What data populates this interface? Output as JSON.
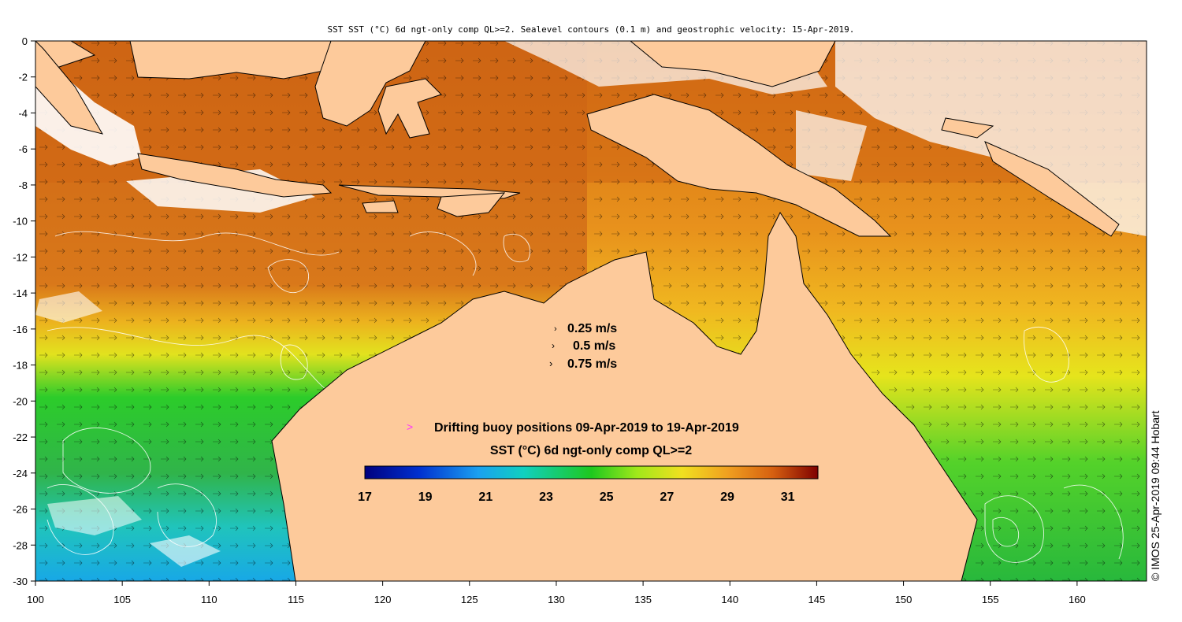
{
  "title": "SST SST (°C) 6d ngt-only comp QL>=2. Sealevel contours (0.1 m) and geostrophic velocity: 15-Apr-2019.",
  "credit": "© IMOS 25-Apr-2019 09:44 Hobart",
  "x_axis": {
    "ticks": [
      100,
      105,
      110,
      115,
      120,
      125,
      130,
      135,
      140,
      145,
      150,
      155,
      160
    ],
    "range": [
      100,
      164
    ]
  },
  "y_axis": {
    "ticks": [
      0,
      -2,
      -4,
      -6,
      -8,
      -10,
      -12,
      -14,
      -16,
      -18,
      -20,
      -22,
      -24,
      -26,
      -28,
      -30
    ],
    "range": [
      -30,
      0
    ]
  },
  "velocity_legend": {
    "items": [
      {
        "label": "0.25 m/s",
        "speed": 0.25
      },
      {
        "label": "0.5 m/s",
        "speed": 0.5
      },
      {
        "label": "0.75 m/s",
        "speed": 0.75
      }
    ]
  },
  "buoy_legend": {
    "marker": ">",
    "label": "Drifting buoy positions 09-Apr-2019 to 19-Apr-2019",
    "marker_color": "#ff33ff"
  },
  "colorbar": {
    "title": "SST (°C) 6d ngt-only comp QL>=2",
    "min": 17,
    "max": 32,
    "ticks": [
      17,
      19,
      21,
      23,
      25,
      27,
      29,
      31
    ]
  },
  "colors": {
    "land": "#fdca9b",
    "cloud": "#ffffff",
    "sst_warm": "#d26a12",
    "sst_mid": "#f0a020"
  }
}
